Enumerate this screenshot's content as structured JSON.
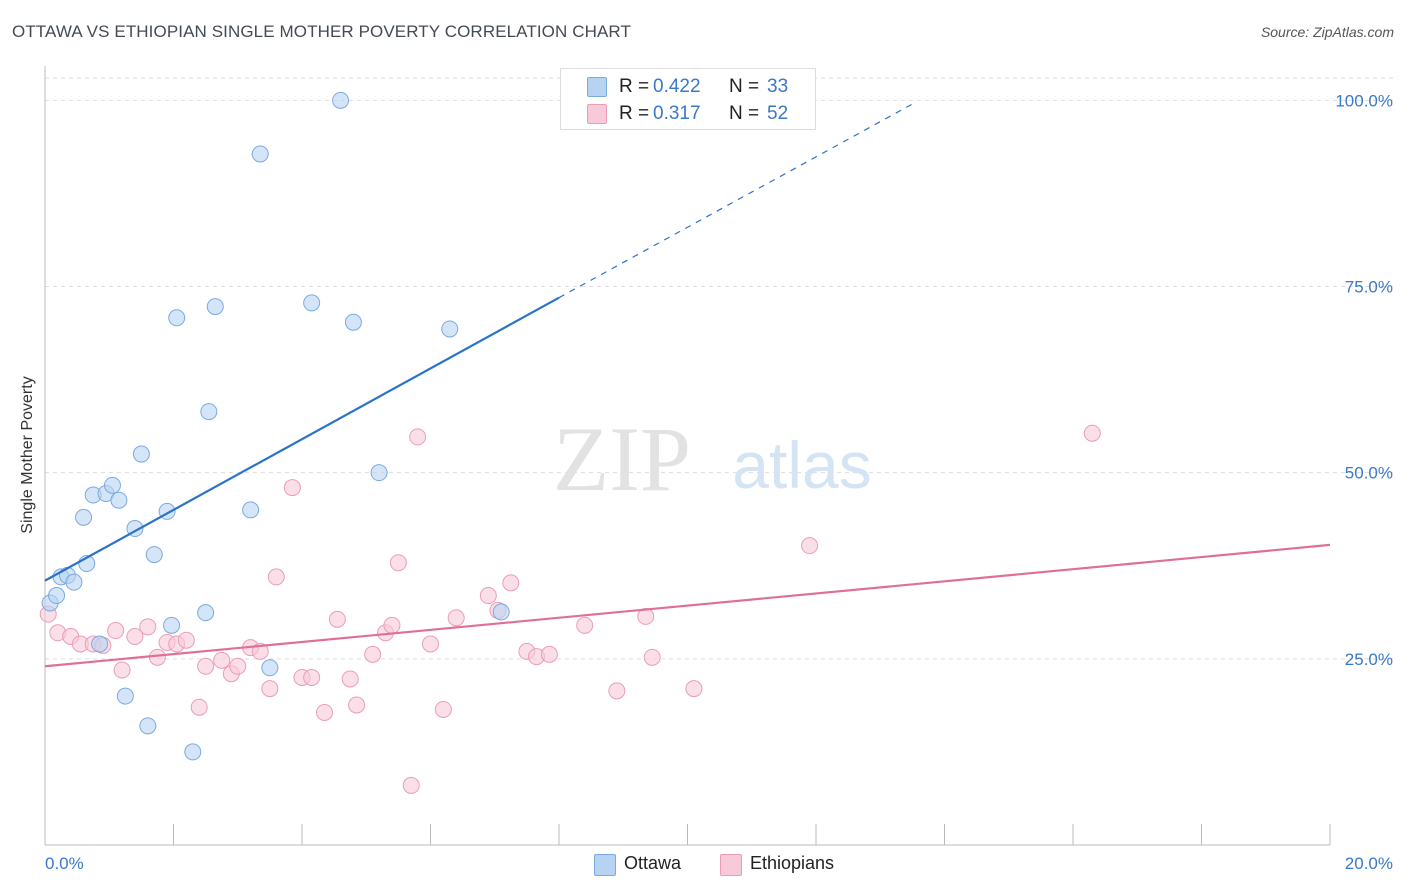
{
  "title": "OTTAWA VS ETHIOPIAN SINGLE MOTHER POVERTY CORRELATION CHART",
  "source": "Source: ZipAtlas.com",
  "watermark": {
    "zip": "ZIP",
    "atlas": "atlas"
  },
  "colors": {
    "ottawa_fill": "#b7d3f2",
    "ottawa_stroke": "#7aaae0",
    "ottawa_line": "#2b72c9",
    "ethiopians_fill": "#f8c9d8",
    "ethiopians_stroke": "#ea9db6",
    "ethiopians_line": "#e06f98",
    "tick_text": "#3a78c9",
    "grid": "#dddddd"
  },
  "legend_top": [
    {
      "r_label": "R =",
      "r_value": "0.422",
      "n_label": "N =",
      "n_value": "33"
    },
    {
      "r_label": "R =",
      "r_value": "0.317",
      "n_label": "N =",
      "n_value": "52"
    }
  ],
  "legend_bottom": [
    "Ottawa",
    "Ethiopians"
  ],
  "chart_data": {
    "type": "scatter",
    "title": "OTTAWA VS ETHIOPIAN SINGLE MOTHER POVERTY CORRELATION CHART",
    "xlabel": "",
    "ylabel": "Single Mother Poverty",
    "xlim": [
      0,
      20
    ],
    "ylim": [
      0,
      103
    ],
    "x_tick_labels": [
      "0.0%",
      "20.0%"
    ],
    "y_ticks": [
      25,
      50,
      75,
      100
    ],
    "y_tick_labels": [
      "25.0%",
      "50.0%",
      "75.0%",
      "100.0%"
    ],
    "grid": true,
    "legend_position": "top-center",
    "series": [
      {
        "name": "Ottawa",
        "r": 0.422,
        "n": 33,
        "trend": {
          "x": [
            0,
            8.0
          ],
          "y": [
            35.5,
            73.5
          ],
          "dashed_extension": {
            "x": [
              8.0,
              13.5
            ],
            "y": [
              73.5,
              99.5
            ]
          }
        },
        "points": [
          [
            0.08,
            32.5
          ],
          [
            0.18,
            33.5
          ],
          [
            0.25,
            36.0
          ],
          [
            0.35,
            36.2
          ],
          [
            0.45,
            35.3
          ],
          [
            0.6,
            44.0
          ],
          [
            0.65,
            37.8
          ],
          [
            0.75,
            47.0
          ],
          [
            0.85,
            27.0
          ],
          [
            0.95,
            47.2
          ],
          [
            1.05,
            48.3
          ],
          [
            1.15,
            46.3
          ],
          [
            1.25,
            20.0
          ],
          [
            1.4,
            42.5
          ],
          [
            1.5,
            52.5
          ],
          [
            1.6,
            16.0
          ],
          [
            1.7,
            39.0
          ],
          [
            1.9,
            44.8
          ],
          [
            1.97,
            29.5
          ],
          [
            2.05,
            70.8
          ],
          [
            2.3,
            12.5
          ],
          [
            2.5,
            31.2
          ],
          [
            2.55,
            58.2
          ],
          [
            2.65,
            72.3
          ],
          [
            3.2,
            45.0
          ],
          [
            3.35,
            92.8
          ],
          [
            3.5,
            23.8
          ],
          [
            4.15,
            72.8
          ],
          [
            4.6,
            100.0
          ],
          [
            4.8,
            70.2
          ],
          [
            5.2,
            50.0
          ],
          [
            6.3,
            69.3
          ],
          [
            7.1,
            31.3
          ]
        ]
      },
      {
        "name": "Ethiopians",
        "r": 0.317,
        "n": 52,
        "trend": {
          "x": [
            0,
            20.0
          ],
          "y": [
            24.0,
            40.3
          ]
        },
        "points": [
          [
            0.05,
            31.0
          ],
          [
            0.2,
            28.5
          ],
          [
            0.4,
            28.0
          ],
          [
            0.55,
            27.0
          ],
          [
            0.75,
            27.0
          ],
          [
            0.9,
            26.8
          ],
          [
            1.1,
            28.8
          ],
          [
            1.2,
            23.5
          ],
          [
            1.4,
            28.0
          ],
          [
            1.6,
            29.3
          ],
          [
            1.75,
            25.2
          ],
          [
            1.9,
            27.2
          ],
          [
            2.05,
            27.0
          ],
          [
            2.2,
            27.5
          ],
          [
            2.4,
            18.5
          ],
          [
            2.5,
            24.0
          ],
          [
            2.75,
            24.8
          ],
          [
            2.9,
            23.0
          ],
          [
            3.0,
            24.0
          ],
          [
            3.2,
            26.5
          ],
          [
            3.35,
            26.0
          ],
          [
            3.5,
            21.0
          ],
          [
            3.6,
            36.0
          ],
          [
            3.85,
            48.0
          ],
          [
            4.0,
            22.5
          ],
          [
            4.15,
            22.5
          ],
          [
            4.35,
            17.8
          ],
          [
            4.55,
            30.3
          ],
          [
            4.75,
            22.3
          ],
          [
            4.85,
            18.8
          ],
          [
            5.1,
            25.6
          ],
          [
            5.3,
            28.5
          ],
          [
            5.4,
            29.5
          ],
          [
            5.5,
            37.9
          ],
          [
            5.7,
            8.0
          ],
          [
            5.8,
            54.8
          ],
          [
            6.0,
            27.0
          ],
          [
            6.2,
            18.2
          ],
          [
            6.4,
            30.5
          ],
          [
            6.9,
            33.5
          ],
          [
            7.05,
            31.5
          ],
          [
            7.25,
            35.2
          ],
          [
            7.5,
            26.0
          ],
          [
            7.65,
            25.3
          ],
          [
            7.85,
            25.6
          ],
          [
            8.4,
            29.5
          ],
          [
            8.9,
            20.7
          ],
          [
            9.35,
            30.7
          ],
          [
            9.45,
            25.2
          ],
          [
            10.1,
            21.0
          ],
          [
            11.9,
            40.2
          ],
          [
            16.3,
            55.3
          ]
        ]
      }
    ]
  }
}
